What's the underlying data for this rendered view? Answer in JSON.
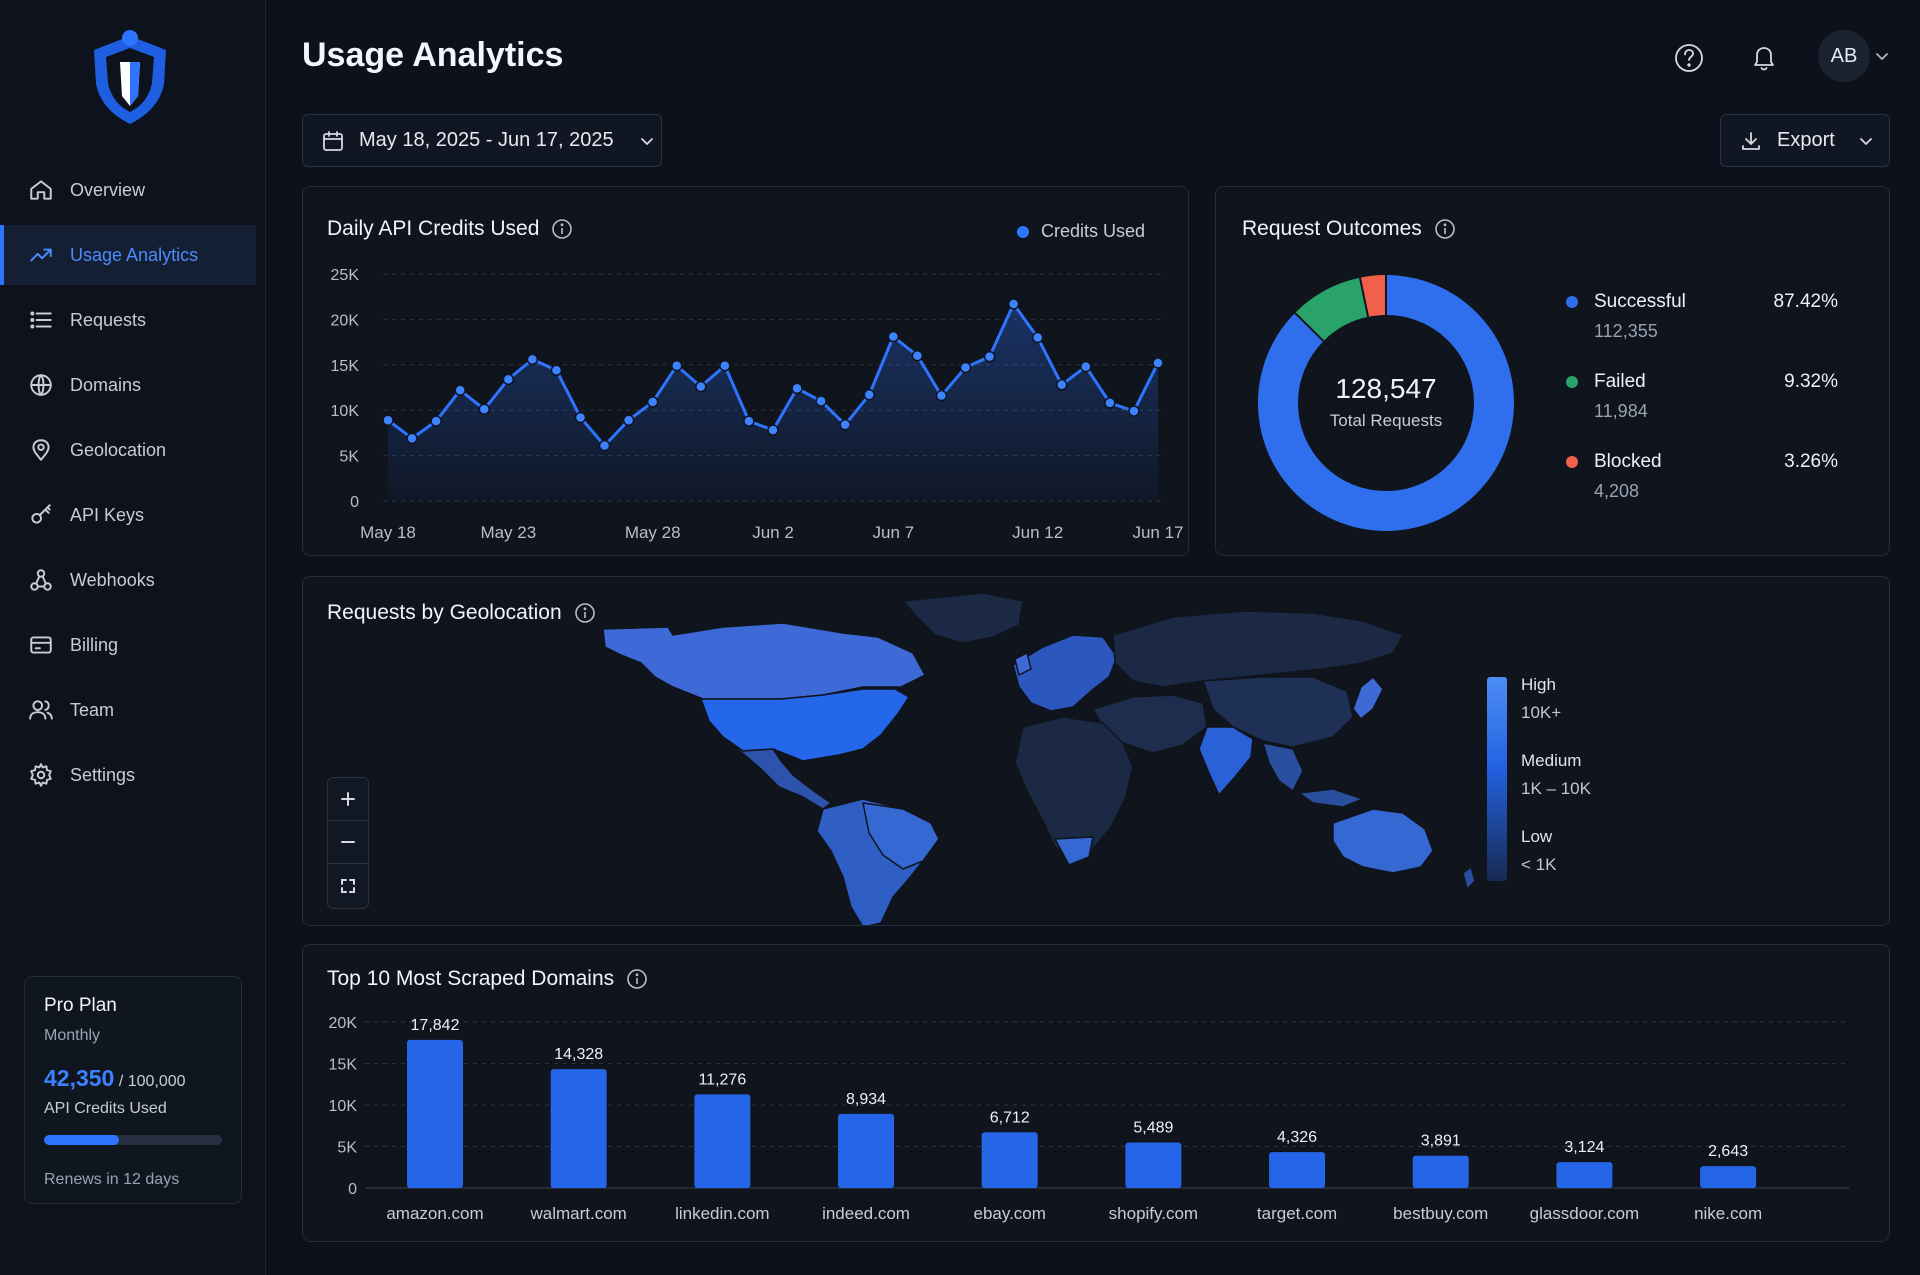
{
  "app": {
    "title": "Usage Analytics"
  },
  "nav": [
    {
      "label": "Overview",
      "icon": "home-icon"
    },
    {
      "label": "Usage Analytics",
      "icon": "trend-icon",
      "active": true
    },
    {
      "label": "Requests",
      "icon": "list-icon"
    },
    {
      "label": "Domains",
      "icon": "globe-icon"
    },
    {
      "label": "Geolocation",
      "icon": "pin-icon"
    },
    {
      "label": "API Keys",
      "icon": "key-icon"
    },
    {
      "label": "Webhooks",
      "icon": "webhook-icon"
    },
    {
      "label": "Billing",
      "icon": "card-icon"
    },
    {
      "label": "Team",
      "icon": "users-icon"
    },
    {
      "label": "Settings",
      "icon": "gear-icon"
    }
  ],
  "plan": {
    "name": "Pro Plan",
    "period": "Monthly",
    "used": "42,350",
    "limit": "/ 100,000",
    "label": "API Credits Used",
    "used_fraction": 0.4235,
    "renews": "Renews in 12 days"
  },
  "header": {
    "avatar": "AB",
    "date_range": "May 18, 2025 - Jun 17, 2025",
    "export_label": "Export"
  },
  "colors": {
    "accent": "#2f74ff",
    "success": "#2aa36b",
    "failed": "#2aa36b",
    "blocked": "#f0604a"
  },
  "daily_credits": {
    "title": "Daily API Credits Used",
    "legend": "Credits Used",
    "chart_data": {
      "type": "area",
      "title": "Daily API Credits Used",
      "ylim": [
        0,
        25000
      ],
      "y_ticks": [
        "25K",
        "20K",
        "15K",
        "10K",
        "5K",
        "0"
      ],
      "y_tick_values": [
        25000,
        20000,
        15000,
        10000,
        5000,
        0
      ],
      "x_ticks": [
        "May 18",
        "May 23",
        "May 28",
        "Jun 2",
        "Jun 7",
        "Jun 12",
        "Jun 17"
      ],
      "series": [
        {
          "name": "Credits Used",
          "values": [
            8900,
            6900,
            8800,
            12200,
            10100,
            13400,
            15600,
            14400,
            9200,
            6100,
            8900,
            10900,
            14900,
            12600,
            14900,
            8800,
            7800,
            12400,
            11000,
            8400,
            11700,
            18100,
            16000,
            11600,
            14700,
            15900,
            21700,
            18000,
            12800,
            14800,
            10800,
            9900,
            15200
          ]
        }
      ]
    }
  },
  "outcomes": {
    "title": "Request Outcomes",
    "total": "128,547",
    "total_label": "Total Requests",
    "chart_data": {
      "type": "pie",
      "title": "Request Outcomes",
      "slices": [
        {
          "name": "Successful",
          "value": 87.42,
          "pct": "87.42%",
          "count": "112,355",
          "color": "#2f6fed"
        },
        {
          "name": "Failed",
          "value": 9.32,
          "pct": "9.32%",
          "count": "11,984",
          "color": "#2aa36b"
        },
        {
          "name": "Blocked",
          "value": 3.26,
          "pct": "3.26%",
          "count": "4,208",
          "color": "#f0604a"
        }
      ]
    }
  },
  "geo": {
    "title": "Requests by Geolocation",
    "legend": {
      "high": "High",
      "high_sub": "10K+",
      "medium": "Medium",
      "medium_sub": "1K – 10K",
      "low": "Low",
      "low_sub": "< 1K"
    }
  },
  "domains": {
    "title": "Top 10 Most Scraped Domains",
    "chart_data": {
      "type": "bar",
      "title": "Top 10 Most Scraped Domains",
      "ylim": [
        0,
        20000
      ],
      "y_ticks": [
        "20K",
        "15K",
        "10K",
        "5K",
        "0"
      ],
      "y_tick_values": [
        20000,
        15000,
        10000,
        5000,
        0
      ],
      "categories": [
        "amazon.com",
        "walmart.com",
        "linkedin.com",
        "indeed.com",
        "ebay.com",
        "shopify.com",
        "target.com",
        "bestbuy.com",
        "glassdoor.com",
        "nike.com"
      ],
      "values": [
        17842,
        14328,
        11276,
        8934,
        6712,
        5489,
        4326,
        3891,
        3124,
        2643
      ],
      "labels": [
        "17,842",
        "14,328",
        "11,276",
        "8,934",
        "6,712",
        "5,489",
        "4,326",
        "3,891",
        "3,124",
        "2,643"
      ]
    }
  }
}
